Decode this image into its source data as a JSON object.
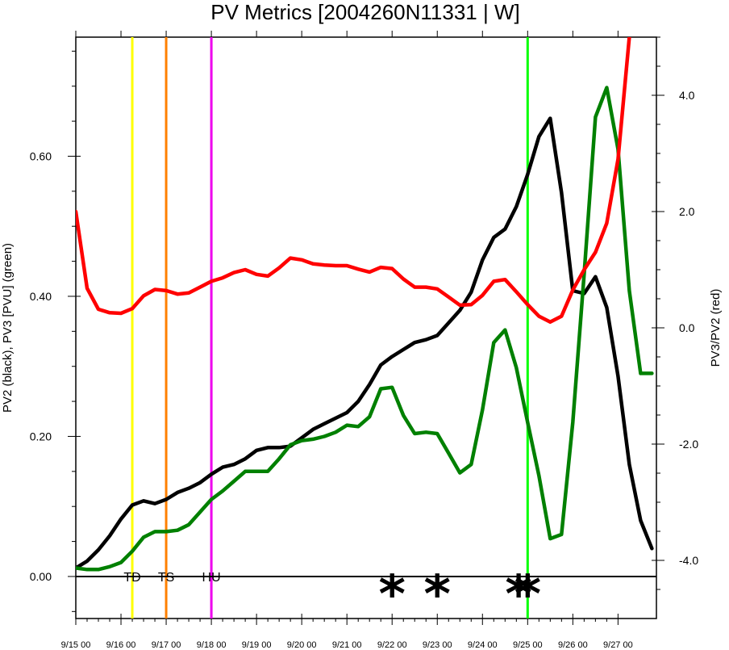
{
  "chart_data": {
    "type": "line",
    "title": "PV Metrics [2004260N11331 | W]",
    "ylabel_left": "PV2 (black), PV3 [PVU] (green)",
    "ylabel_right": "PV3/PV2 (red)",
    "x_ticks": [
      "9/15 00",
      "9/16 00",
      "9/17 00",
      "9/18 00",
      "9/19 00",
      "9/20 00",
      "9/21 00",
      "9/22 00",
      "9/23 00",
      "9/24 00",
      "9/25 00",
      "9/26 00",
      "9/27 00"
    ],
    "xlim": [
      0,
      12.85
    ],
    "ylim_left": [
      -0.06,
      0.77
    ],
    "ylim_right": [
      -5.0,
      5.0
    ],
    "y_ticks_left": [
      "0.00",
      "0.20",
      "0.40",
      "0.60"
    ],
    "y_ticks_left_values": [
      0.0,
      0.2,
      0.4,
      0.6
    ],
    "y_ticks_right": [
      "-4.0",
      "-2.0",
      "0.0",
      "2.0",
      "4.0"
    ],
    "y_ticks_right_values": [
      -4.0,
      -2.0,
      0.0,
      2.0,
      4.0
    ],
    "zero_line": 0.0,
    "series": [
      {
        "name": "PV2",
        "color": "#000000",
        "axis": "left",
        "x": [
          0,
          0.25,
          0.5,
          0.75,
          1,
          1.25,
          1.5,
          1.75,
          2,
          2.25,
          2.5,
          2.75,
          3,
          3.25,
          3.5,
          3.75,
          4,
          4.25,
          4.5,
          4.75,
          5,
          5.25,
          5.5,
          5.75,
          6,
          6.25,
          6.5,
          6.75,
          7,
          7.25,
          7.5,
          7.75,
          8,
          8.25,
          8.5,
          8.75,
          9,
          9.25,
          9.5,
          9.75,
          10,
          10.25,
          10.5,
          10.75,
          11,
          11.25,
          11.5,
          11.75,
          12,
          12.25,
          12.5,
          12.75
        ],
        "values": [
          0.012,
          0.022,
          0.038,
          0.058,
          0.082,
          0.102,
          0.108,
          0.104,
          0.11,
          0.12,
          0.126,
          0.134,
          0.146,
          0.156,
          0.16,
          0.168,
          0.18,
          0.184,
          0.184,
          0.186,
          0.198,
          0.21,
          0.218,
          0.226,
          0.234,
          0.25,
          0.274,
          0.302,
          0.314,
          0.324,
          0.334,
          0.338,
          0.344,
          0.362,
          0.38,
          0.406,
          0.452,
          0.484,
          0.496,
          0.528,
          0.574,
          0.628,
          0.654,
          0.548,
          0.408,
          0.404,
          0.428,
          0.384,
          0.286,
          0.16,
          0.08,
          0.04
        ]
      },
      {
        "name": "PV3",
        "color": "#008000",
        "axis": "left",
        "x": [
          0,
          0.25,
          0.5,
          0.75,
          1,
          1.25,
          1.5,
          1.75,
          2,
          2.25,
          2.5,
          2.75,
          3,
          3.25,
          3.5,
          3.75,
          4,
          4.25,
          4.5,
          4.75,
          5,
          5.25,
          5.5,
          5.75,
          6,
          6.25,
          6.5,
          6.75,
          7,
          7.25,
          7.5,
          7.75,
          8,
          8.25,
          8.5,
          8.75,
          9,
          9.25,
          9.5,
          9.75,
          10,
          10.25,
          10.5,
          10.75,
          11,
          11.25,
          11.5,
          11.75,
          12,
          12.25,
          12.5,
          12.75
        ],
        "values": [
          0.012,
          0.01,
          0.01,
          0.014,
          0.02,
          0.036,
          0.056,
          0.064,
          0.064,
          0.066,
          0.074,
          0.092,
          0.11,
          0.122,
          0.136,
          0.15,
          0.15,
          0.15,
          0.168,
          0.188,
          0.194,
          0.196,
          0.2,
          0.206,
          0.216,
          0.214,
          0.228,
          0.268,
          0.27,
          0.23,
          0.204,
          0.206,
          0.204,
          0.176,
          0.148,
          0.16,
          0.238,
          0.334,
          0.352,
          0.298,
          0.22,
          0.144,
          0.054,
          0.06,
          0.22,
          0.432,
          0.656,
          0.698,
          0.61,
          0.408,
          0.29,
          0.29
        ]
      },
      {
        "name": "PV3/PV2",
        "color": "#ff0000",
        "axis": "right",
        "x": [
          0,
          0.25,
          0.5,
          0.75,
          1,
          1.25,
          1.5,
          1.75,
          2,
          2.25,
          2.5,
          2.75,
          3,
          3.25,
          3.5,
          3.75,
          4,
          4.25,
          4.5,
          4.75,
          5,
          5.25,
          5.5,
          5.75,
          6,
          6.25,
          6.5,
          6.75,
          7,
          7.25,
          7.5,
          7.75,
          8,
          8.25,
          8.5,
          8.75,
          9,
          9.25,
          9.5,
          9.75,
          10,
          10.25,
          10.5,
          10.75,
          11,
          11.25,
          11.5,
          11.75,
          12,
          12.25
        ],
        "values": [
          2.0,
          0.68,
          0.32,
          0.26,
          0.25,
          0.33,
          0.55,
          0.66,
          0.64,
          0.58,
          0.6,
          0.7,
          0.8,
          0.86,
          0.95,
          1.0,
          0.92,
          0.89,
          1.03,
          1.2,
          1.17,
          1.1,
          1.08,
          1.07,
          1.07,
          1.01,
          0.96,
          1.04,
          1.02,
          0.84,
          0.7,
          0.7,
          0.67,
          0.53,
          0.39,
          0.4,
          0.56,
          0.8,
          0.83,
          0.62,
          0.4,
          0.2,
          0.1,
          0.2,
          0.65,
          1.0,
          1.3,
          1.8,
          2.9,
          5.0
        ]
      }
    ],
    "event_lines": [
      {
        "label": "TD",
        "x": 1.25,
        "color": "#ffff00"
      },
      {
        "label": "TS",
        "x": 2.0,
        "color": "#ff8000"
      },
      {
        "label": "HU",
        "x": 3.0,
        "color": "#ee00ee"
      },
      {
        "label": "",
        "x": 10.0,
        "color": "#00ff00"
      }
    ],
    "markers": {
      "symbol": "*",
      "x": [
        7.0,
        8.0,
        9.8,
        10.0
      ]
    },
    "grid": false,
    "legend": "none"
  }
}
